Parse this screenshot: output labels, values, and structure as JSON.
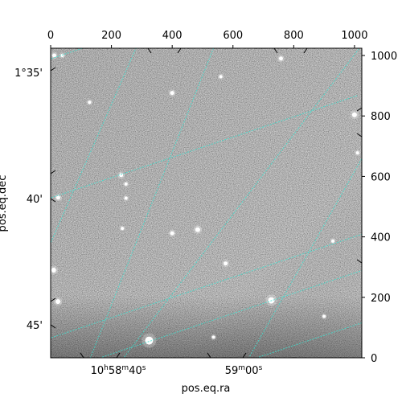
{
  "chart_data": {
    "type": "image",
    "title": "",
    "colormap": "gray",
    "grid": true,
    "grid_color": "#40e0d0",
    "pixel_axes": {
      "x_range": [
        0,
        1024
      ],
      "y_range": [
        0,
        1024
      ],
      "x_ticks": [
        0,
        200,
        400,
        600,
        800,
        1000
      ],
      "y_ticks": [
        0,
        200,
        400,
        600,
        800,
        1000
      ]
    },
    "world_axes": {
      "xlabel": "pos.eq.ra",
      "ylabel": "pos.eq.dec",
      "ra_tick_labels": [
        {
          "h": "10",
          "m": "58",
          "s": "40",
          "suffix": ""
        },
        {
          "h": "",
          "m": "59",
          "s": "00",
          "suffix": ""
        }
      ],
      "dec_tick_labels": [
        "1°35'",
        "40'",
        "45'"
      ]
    },
    "stars": [
      {
        "x": 12,
        "y": 1000,
        "r": 2.5
      },
      {
        "x": 38,
        "y": 1000,
        "r": 2
      },
      {
        "x": 560,
        "y": 930,
        "r": 2
      },
      {
        "x": 400,
        "y": 876,
        "r": 2.5
      },
      {
        "x": 128,
        "y": 845,
        "r": 2
      },
      {
        "x": 758,
        "y": 990,
        "r": 2.5
      },
      {
        "x": 1000,
        "y": 804,
        "r": 3
      },
      {
        "x": 1010,
        "y": 678,
        "r": 2
      },
      {
        "x": 232,
        "y": 604,
        "r": 2.5
      },
      {
        "x": 248,
        "y": 575,
        "r": 2
      },
      {
        "x": 25,
        "y": 530,
        "r": 2.5
      },
      {
        "x": 248,
        "y": 528,
        "r": 2
      },
      {
        "x": 236,
        "y": 428,
        "r": 2
      },
      {
        "x": 400,
        "y": 412,
        "r": 2.5
      },
      {
        "x": 484,
        "y": 424,
        "r": 3
      },
      {
        "x": 10,
        "y": 290,
        "r": 3
      },
      {
        "x": 24,
        "y": 186,
        "r": 3
      },
      {
        "x": 726,
        "y": 190,
        "r": 4
      },
      {
        "x": 324,
        "y": 57,
        "r": 5
      },
      {
        "x": 576,
        "y": 312,
        "r": 2.5
      },
      {
        "x": 929,
        "y": 386,
        "r": 2
      },
      {
        "x": 900,
        "y": 137,
        "r": 2
      },
      {
        "x": 536,
        "y": 68,
        "r": 2
      }
    ],
    "grid_lines": [
      {
        "x1": -77,
        "y1": 963,
        "x2": 399,
        "y2": 1123
      },
      {
        "x1": -77,
        "y1": 503,
        "x2": 1011,
        "y2": 868
      },
      {
        "x1": -77,
        "y1": 40,
        "x2": 1142,
        "y2": 448
      },
      {
        "x1": 82,
        "y1": -27,
        "x2": 1142,
        "y2": 328
      },
      {
        "x1": 589,
        "y1": -30,
        "x2": 1142,
        "y2": 155
      },
      {
        "x1": -77,
        "y1": 203,
        "x2": 324,
        "y2": 1123
      },
      {
        "x1": 120,
        "y1": -27,
        "x2": 575,
        "y2": 1123
      },
      {
        "x1": 220,
        "y1": -27,
        "x2": 1091,
        "y2": 1123
      },
      {
        "x1": 637,
        "y1": -27,
        "x2": 1142,
        "y2": 868
      },
      {
        "x1": 1031,
        "y1": -27,
        "x2": 1142,
        "y2": 154
      }
    ]
  }
}
